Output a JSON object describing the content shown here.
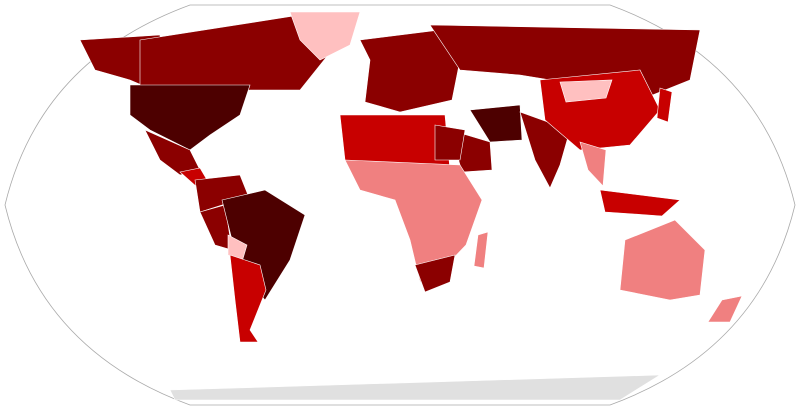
{
  "map": {
    "type": "world choropleth",
    "projection": "Robinson",
    "colors": {
      "darkest": "#4d0000",
      "dark": "#8b0000",
      "red": "#c80000",
      "light": "#f08080",
      "pale": "#ffc0c0",
      "none": "#e0e0e0",
      "frame": "#aaaaaa"
    },
    "regions": [
      {
        "id": "alaska",
        "level": "dark"
      },
      {
        "id": "canada",
        "level": "dark"
      },
      {
        "id": "greenland",
        "level": "pale"
      },
      {
        "id": "usa",
        "level": "darkest"
      },
      {
        "id": "mexico",
        "level": "dark"
      },
      {
        "id": "central-america",
        "level": "red"
      },
      {
        "id": "colombia-venezuela",
        "level": "dark"
      },
      {
        "id": "peru",
        "level": "dark"
      },
      {
        "id": "brazil",
        "level": "darkest"
      },
      {
        "id": "bolivia",
        "level": "pale"
      },
      {
        "id": "argentina-chile",
        "level": "red"
      },
      {
        "id": "europe",
        "level": "dark"
      },
      {
        "id": "russia",
        "level": "dark"
      },
      {
        "id": "iran",
        "level": "darkest"
      },
      {
        "id": "saudi-arabia",
        "level": "dark"
      },
      {
        "id": "india",
        "level": "dark"
      },
      {
        "id": "china",
        "level": "red"
      },
      {
        "id": "mongolia",
        "level": "pale"
      },
      {
        "id": "southeast-asia",
        "level": "light"
      },
      {
        "id": "indonesia",
        "level": "red"
      },
      {
        "id": "japan",
        "level": "red"
      },
      {
        "id": "north-africa",
        "level": "red"
      },
      {
        "id": "egypt",
        "level": "dark"
      },
      {
        "id": "sub-saharan-africa",
        "level": "light"
      },
      {
        "id": "south-africa",
        "level": "dark"
      },
      {
        "id": "madagascar",
        "level": "light"
      },
      {
        "id": "australia",
        "level": "light"
      },
      {
        "id": "new-zealand",
        "level": "light"
      },
      {
        "id": "antarctica",
        "level": "none"
      }
    ]
  }
}
